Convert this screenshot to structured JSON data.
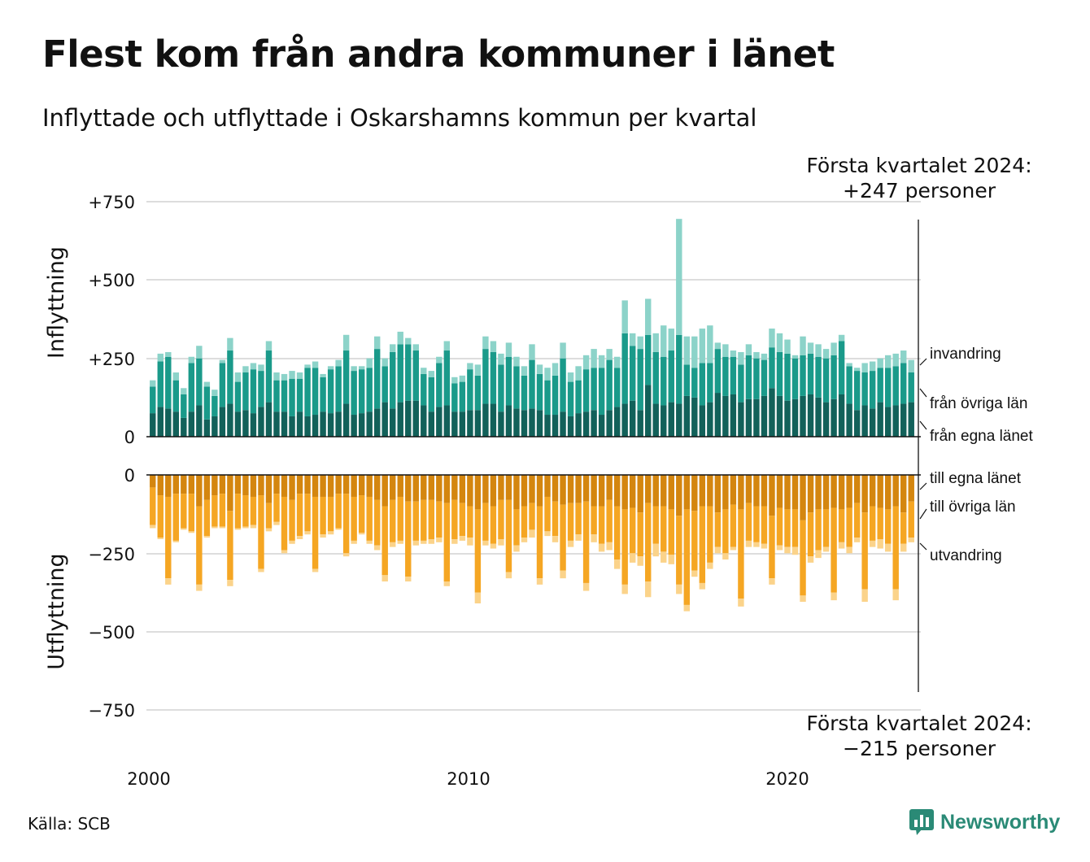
{
  "title": "Flest kom från andra kommuner i länet",
  "subtitle": "Inflyttade och utflyttade i Oskarshamns kommun per kvartal",
  "source": "Källa: SCB",
  "brand": "Newsworthy",
  "annotation_top": {
    "line1": "Första kvartalet 2024:",
    "line2": "+247 personer"
  },
  "annotation_bottom": {
    "line1": "Första kvartalet 2024:",
    "line2": "−215 personer"
  },
  "colors": {
    "egna_in": "#12615a",
    "ovriga_in": "#1a9a8a",
    "invandring": "#8cd3c9",
    "egna_ut": "#d4860f",
    "ovriga_ut": "#f5a623",
    "utvandring": "#fbd38a",
    "grid": "#dddddd",
    "brand": "#2a8a76"
  },
  "chart_data": [
    {
      "type": "bar",
      "stacked": true,
      "name": "Inflyttning",
      "ylabel": "Inflyttning",
      "ylim": [
        0,
        750
      ],
      "yticks": [
        0,
        250,
        500,
        750
      ],
      "ytick_labels": [
        "0",
        "+250",
        "+500",
        "+750"
      ],
      "x_start": "2000 Q1",
      "x_end": "2024 Q1",
      "xtick_labels": [
        "2000",
        "2010",
        "2020"
      ],
      "grid": true,
      "series": [
        {
          "name": "från egna länet",
          "values": [
            75,
            95,
            90,
            80,
            60,
            80,
            100,
            55,
            65,
            95,
            105,
            80,
            85,
            75,
            95,
            110,
            80,
            80,
            65,
            80,
            65,
            70,
            80,
            75,
            80,
            105,
            70,
            75,
            80,
            90,
            110,
            90,
            110,
            115,
            115,
            100,
            80,
            95,
            100,
            80,
            80,
            85,
            85,
            105,
            105,
            80,
            100,
            90,
            85,
            90,
            85,
            70,
            70,
            80,
            65,
            75,
            80,
            85,
            70,
            85,
            95,
            105,
            115,
            85,
            165,
            105,
            100,
            110,
            105,
            130,
            125,
            100,
            110,
            140,
            130,
            135,
            110,
            120,
            120,
            130,
            155,
            130,
            115,
            120,
            130,
            135,
            125,
            110,
            120,
            135,
            105,
            85,
            100,
            90,
            110,
            95,
            100,
            105,
            110
          ]
        },
        {
          "name": "från övriga län",
          "values": [
            85,
            145,
            165,
            100,
            75,
            155,
            150,
            105,
            65,
            140,
            170,
            95,
            120,
            140,
            115,
            165,
            100,
            100,
            120,
            105,
            155,
            150,
            110,
            140,
            145,
            170,
            140,
            140,
            140,
            190,
            115,
            180,
            185,
            180,
            160,
            100,
            110,
            140,
            175,
            90,
            95,
            130,
            110,
            175,
            165,
            150,
            155,
            135,
            110,
            155,
            115,
            110,
            125,
            170,
            110,
            105,
            135,
            135,
            150,
            160,
            125,
            225,
            175,
            195,
            160,
            165,
            155,
            165,
            220,
            100,
            95,
            135,
            125,
            140,
            125,
            120,
            120,
            140,
            130,
            115,
            130,
            140,
            150,
            130,
            130,
            130,
            130,
            140,
            140,
            170,
            120,
            125,
            105,
            120,
            110,
            125,
            125,
            130,
            95
          ]
        },
        {
          "name": "invandring",
          "values": [
            20,
            25,
            15,
            25,
            20,
            20,
            40,
            15,
            20,
            10,
            40,
            30,
            20,
            20,
            20,
            30,
            25,
            20,
            25,
            20,
            10,
            20,
            10,
            10,
            20,
            50,
            15,
            10,
            30,
            40,
            25,
            25,
            40,
            20,
            20,
            20,
            20,
            20,
            30,
            20,
            20,
            20,
            35,
            40,
            35,
            35,
            45,
            30,
            30,
            50,
            30,
            40,
            40,
            50,
            30,
            45,
            45,
            60,
            40,
            35,
            35,
            105,
            40,
            40,
            115,
            60,
            100,
            70,
            370,
            90,
            100,
            110,
            120,
            20,
            40,
            20,
            40,
            35,
            20,
            20,
            60,
            60,
            45,
            10,
            60,
            35,
            40,
            30,
            40,
            20,
            10,
            10,
            30,
            30,
            30,
            40,
            40,
            40,
            40
          ]
        }
      ]
    },
    {
      "type": "bar",
      "stacked": true,
      "name": "Utflyttning",
      "ylabel": "Utflyttning",
      "ylim": [
        -750,
        0
      ],
      "yticks": [
        0,
        -250,
        -500,
        -750
      ],
      "ytick_labels": [
        "0",
        "−250",
        "−500",
        "−750"
      ],
      "x_start": "2000 Q1",
      "x_end": "2024 Q1",
      "xtick_labels": [
        "2000",
        "2010",
        "2020"
      ],
      "grid": true,
      "series": [
        {
          "name": "till egna länet",
          "values": [
            -40,
            -65,
            -70,
            -60,
            -60,
            -60,
            -100,
            -80,
            -65,
            -60,
            -115,
            -60,
            -65,
            -70,
            -65,
            -90,
            -60,
            -70,
            -80,
            -60,
            -60,
            -70,
            -70,
            -70,
            -60,
            -60,
            -70,
            -65,
            -70,
            -80,
            -100,
            -80,
            -70,
            -85,
            -85,
            -80,
            -80,
            -85,
            -90,
            -80,
            -90,
            -100,
            -110,
            -90,
            -100,
            -80,
            -80,
            -110,
            -100,
            -90,
            -100,
            -70,
            -85,
            -95,
            -90,
            -90,
            -85,
            -100,
            -100,
            -80,
            -100,
            -110,
            -105,
            -120,
            -90,
            -100,
            -100,
            -110,
            -130,
            -110,
            -115,
            -100,
            -100,
            -120,
            -110,
            -95,
            -110,
            -90,
            -100,
            -100,
            -130,
            -105,
            -110,
            -110,
            -145,
            -120,
            -110,
            -110,
            -105,
            -110,
            -105,
            -90,
            -120,
            -100,
            -105,
            -110,
            -100,
            -120,
            -85
          ]
        },
        {
          "name": "till övriga län",
          "values": [
            -120,
            -135,
            -260,
            -150,
            -110,
            -120,
            -250,
            -115,
            -100,
            -105,
            -220,
            -110,
            -100,
            -90,
            -235,
            -80,
            -90,
            -170,
            -130,
            -135,
            -120,
            -230,
            -120,
            -110,
            -110,
            -190,
            -140,
            -120,
            -140,
            -145,
            -220,
            -135,
            -140,
            -240,
            -125,
            -130,
            -125,
            -115,
            -250,
            -125,
            -105,
            -100,
            -265,
            -120,
            -120,
            -125,
            -230,
            -115,
            -100,
            -85,
            -230,
            -110,
            -110,
            -210,
            -120,
            -100,
            -260,
            -90,
            -120,
            -135,
            -170,
            -240,
            -145,
            -140,
            -250,
            -120,
            -145,
            -145,
            -220,
            -305,
            -190,
            -245,
            -180,
            -110,
            -140,
            -135,
            -285,
            -120,
            -115,
            -120,
            -200,
            -120,
            -120,
            -120,
            -240,
            -140,
            -130,
            -120,
            -270,
            -105,
            -125,
            -110,
            -245,
            -110,
            -100,
            -110,
            -265,
            -100,
            -115
          ]
        },
        {
          "name": "utvandring",
          "values": [
            -10,
            -5,
            -20,
            -5,
            -5,
            -5,
            -20,
            -5,
            -5,
            -5,
            -20,
            -5,
            -5,
            -10,
            -10,
            -10,
            -10,
            -10,
            -10,
            -10,
            -10,
            -10,
            -10,
            -10,
            -5,
            -10,
            -10,
            -5,
            -10,
            -15,
            -20,
            -15,
            -10,
            -15,
            -15,
            -10,
            -15,
            -15,
            -15,
            -15,
            -15,
            -25,
            -35,
            -15,
            -15,
            -20,
            -20,
            -20,
            -15,
            -25,
            -20,
            -15,
            -20,
            -25,
            -20,
            -20,
            -25,
            -25,
            -25,
            -25,
            -30,
            -30,
            -30,
            -30,
            -50,
            -40,
            -35,
            -30,
            -30,
            -20,
            -20,
            -20,
            -20,
            -20,
            -20,
            -10,
            -25,
            -20,
            -15,
            -15,
            -20,
            -15,
            -20,
            -25,
            -20,
            -20,
            -25,
            -15,
            -25,
            -20,
            -20,
            -15,
            -40,
            -20,
            -30,
            -25,
            -35,
            -25,
            -15
          ]
        }
      ]
    }
  ],
  "series_labels_in": [
    "invandring",
    "från övriga län",
    "från egna länet"
  ],
  "series_labels_out": [
    "till egna länet",
    "till övriga län",
    "utvandring"
  ]
}
